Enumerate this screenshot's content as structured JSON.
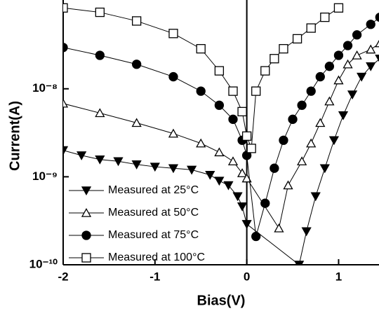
{
  "chart_data": {
    "type": "line",
    "x_label": "Bias(V)",
    "y_label": "Current(A)",
    "xlim": [
      -2,
      1.44
    ],
    "xticks": [
      -2,
      -1,
      0,
      1
    ],
    "ylim": [
      1e-10,
      8.5e-08
    ],
    "log_y": true,
    "yticks": [
      {
        "value": 1e-10,
        "label": "10⁻¹⁰"
      },
      {
        "value": 1e-09,
        "label": "10⁻⁹"
      },
      {
        "value": 1e-08,
        "label": "10⁻⁸"
      }
    ],
    "zero_line": 0,
    "legend": "lower left",
    "series": [
      {
        "name": "Measured at 25°C",
        "color": "#000000",
        "marker": "triangle-down",
        "filled": true,
        "x": [
          -2,
          -1.8,
          -1.6,
          -1.4,
          -1.2,
          -1.0,
          -0.8,
          -0.6,
          -0.4,
          -0.3,
          -0.2,
          -0.1,
          -0.05,
          0,
          0.57,
          0.65,
          0.75,
          0.85,
          0.95,
          1.05,
          1.15,
          1.25,
          1.35,
          1.45
        ],
        "values": [
          2e-09,
          1.75e-09,
          1.57e-09,
          1.5e-09,
          1.38e-09,
          1.3e-09,
          1.25e-09,
          1.2e-09,
          1.05e-09,
          9e-10,
          8e-10,
          6e-10,
          4.6e-10,
          2.9e-10,
          1e-10,
          2.4e-10,
          6e-10,
          1.25e-09,
          2.6e-09,
          5e-09,
          8.6e-09,
          1.37e-08,
          1.8e-08,
          2.2e-08
        ]
      },
      {
        "name": "Measured at 50°C",
        "color": "#000000",
        "marker": "triangle-up",
        "filled": false,
        "x": [
          -2,
          -1.6,
          -1.2,
          -0.8,
          -0.5,
          -0.3,
          -0.15,
          -0.05,
          0,
          0.35,
          0.45,
          0.6,
          0.7,
          0.8,
          0.9,
          1.0,
          1.1,
          1.2,
          1.35,
          1.45
        ],
        "values": [
          6.8e-09,
          5.3e-09,
          4.1e-09,
          3.1e-09,
          2.4e-09,
          1.9e-09,
          1.5e-09,
          1.1e-09,
          9.6e-10,
          2.6e-10,
          8e-10,
          1.5e-09,
          2.4e-09,
          4.1e-09,
          7.2e-09,
          1.25e-08,
          1.9e-08,
          2.4e-08,
          2.8e-08,
          3.3e-08
        ]
      },
      {
        "name": "Measured at 75°C",
        "color": "#000000",
        "marker": "circle",
        "filled": true,
        "x": [
          -2,
          -1.6,
          -1.2,
          -0.8,
          -0.5,
          -0.3,
          -0.15,
          -0.05,
          0,
          0.1,
          0.2,
          0.3,
          0.4,
          0.5,
          0.6,
          0.7,
          0.8,
          0.9,
          1.0,
          1.1,
          1.2,
          1.35,
          1.45
        ],
        "values": [
          2.95e-08,
          2.4e-08,
          1.9e-08,
          1.37e-08,
          9.4e-09,
          6.5e-09,
          4.5e-09,
          2.6e-09,
          1.75e-09,
          2.1e-10,
          5e-10,
          1.25e-09,
          2.6e-09,
          4.5e-09,
          6.5e-09,
          9.4e-09,
          1.37e-08,
          1.8e-08,
          2.4e-08,
          3.1e-08,
          4.1e-08,
          5.4e-08,
          6.5e-08
        ]
      },
      {
        "name": "Measured at 100°C",
        "color": "#000000",
        "marker": "square",
        "filled": false,
        "x": [
          -2,
          -1.6,
          -1.2,
          -0.8,
          -0.5,
          -0.3,
          -0.15,
          -0.05,
          0,
          0.05,
          0.1,
          0.2,
          0.3,
          0.4,
          0.55,
          0.7,
          0.85,
          1.0
        ],
        "values": [
          8.3e-08,
          7.4e-08,
          5.9e-08,
          4.25e-08,
          2.85e-08,
          1.6e-08,
          9.4e-09,
          5.5e-09,
          2.9e-09,
          2.1e-09,
          9.4e-09,
          1.6e-08,
          2.2e-08,
          2.85e-08,
          3.7e-08,
          4.9e-08,
          6.5e-08,
          8.3e-08
        ]
      }
    ]
  }
}
